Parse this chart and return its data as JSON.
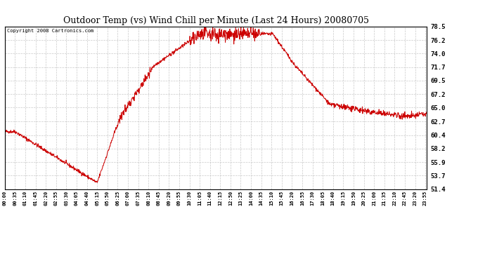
{
  "title": "Outdoor Temp (vs) Wind Chill per Minute (Last 24 Hours) 20080705",
  "copyright_text": "Copyright 2008 Cartronics.com",
  "line_color": "#cc0000",
  "background_color": "#ffffff",
  "grid_color": "#bbbbbb",
  "ymin": 51.4,
  "ymax": 78.5,
  "yticks": [
    51.4,
    53.7,
    55.9,
    58.2,
    60.4,
    62.7,
    65.0,
    67.2,
    69.5,
    71.7,
    74.0,
    76.2,
    78.5
  ],
  "x_tick_labels": [
    "00:00",
    "00:35",
    "01:10",
    "01:45",
    "02:20",
    "02:55",
    "03:30",
    "04:05",
    "04:40",
    "05:15",
    "05:50",
    "06:25",
    "07:00",
    "07:35",
    "08:10",
    "08:45",
    "09:20",
    "09:55",
    "10:30",
    "11:05",
    "11:40",
    "12:15",
    "12:50",
    "13:25",
    "14:00",
    "14:35",
    "15:10",
    "15:45",
    "16:20",
    "16:55",
    "17:30",
    "18:05",
    "18:40",
    "19:15",
    "19:50",
    "20:25",
    "21:00",
    "21:35",
    "22:10",
    "22:45",
    "23:20",
    "23:55"
  ],
  "figwidth": 6.9,
  "figheight": 3.75,
  "dpi": 100
}
